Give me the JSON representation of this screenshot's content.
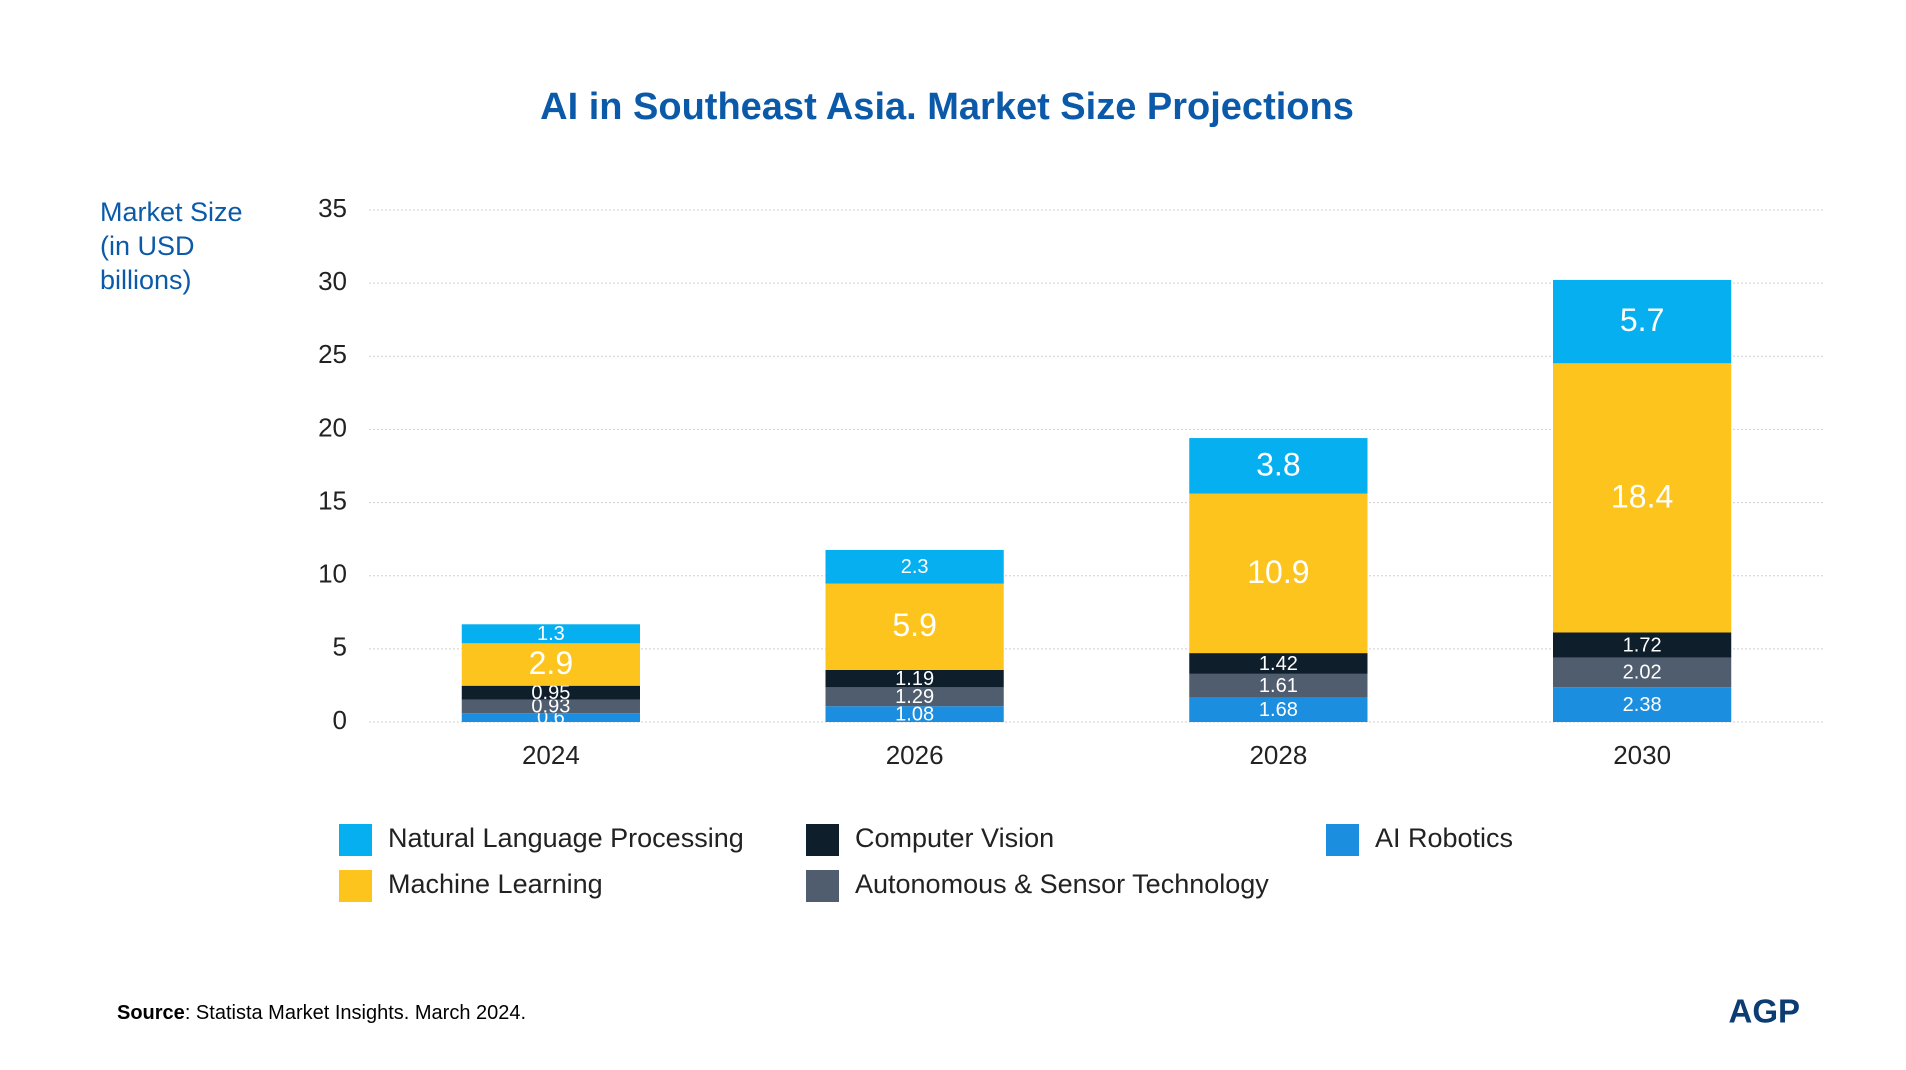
{
  "chart_data": {
    "type": "stacked_bar",
    "title": "AI in Southeast Asia. Market Size Projections",
    "y_label": "Market Size (in USD billions)",
    "categories": [
      "2024",
      "2026",
      "2028",
      "2030"
    ],
    "series": [
      {
        "name": "AI Robotics",
        "color": "#1b8ee0",
        "values": [
          0.6,
          1.08,
          1.68,
          2.38
        ]
      },
      {
        "name": "Autonomous & Sensor Technology",
        "color": "#4f5d6e",
        "values": [
          0.93,
          1.29,
          1.61,
          2.02
        ]
      },
      {
        "name": "Computer Vision",
        "color": "#0e1e2b",
        "values": [
          0.95,
          1.19,
          1.42,
          1.72
        ]
      },
      {
        "name": "Machine Learning",
        "color": "#fdc41e",
        "values": [
          2.9,
          5.9,
          10.9,
          18.4
        ]
      },
      {
        "name": "Natural Language Processing",
        "color": "#05aff0",
        "values": [
          1.3,
          2.3,
          3.8,
          5.7
        ]
      }
    ],
    "ylim": [
      0,
      35
    ],
    "yticks": [
      0,
      5,
      10,
      15,
      20,
      25,
      30,
      35
    ],
    "grid": true,
    "legend": "bottom"
  },
  "footer": {
    "source_label": "Source",
    "source_text": ": Statista Market Insights. March 2024.",
    "logo": "AGP"
  }
}
